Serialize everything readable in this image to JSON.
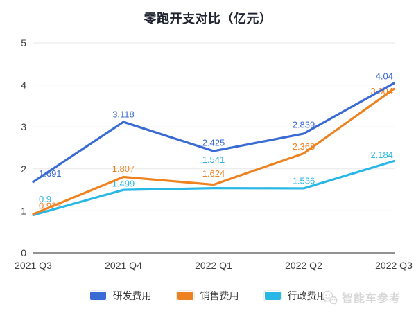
{
  "chart_data": {
    "type": "line",
    "title": "零跑开支对比（亿元）",
    "categories": [
      "2021 Q3",
      "2021 Q4",
      "2022 Q1",
      "2022 Q2",
      "2022 Q3"
    ],
    "series": [
      {
        "name": "研发费用",
        "color": "#3a6ad4",
        "values": [
          1.691,
          3.118,
          2.425,
          2.839,
          4.04
        ],
        "labels": [
          "1.691",
          "3.118",
          "2.425",
          "2.839",
          "4.04"
        ]
      },
      {
        "name": "销售费用",
        "color": "#ef8220",
        "values": [
          0.923,
          1.807,
          1.624,
          2.368,
          3.904
        ],
        "labels": [
          "0.923",
          "1.807",
          "1.624",
          "2.368",
          "3.904"
        ]
      },
      {
        "name": "行政费用",
        "color": "#29b7e5",
        "values": [
          0.9,
          1.499,
          1.541,
          1.536,
          2.184
        ],
        "labels": [
          "0.9",
          "1.499",
          "1.541",
          "1.536",
          "2.184"
        ]
      }
    ],
    "xlabel": "",
    "ylabel": "",
    "ylim": [
      0,
      5
    ],
    "yticks": [
      0,
      1,
      2,
      3,
      4,
      5
    ],
    "grid": true,
    "legend_position": "bottom"
  },
  "watermark": {
    "text": "智能车参考",
    "icon": "wechat-icon"
  },
  "colors": {
    "background": "#ffffff",
    "grid": "#e7e7e7",
    "axis": "#6e6e6e",
    "tick_text": "#3d3d3d",
    "title_text": "#1e2430",
    "watermark": "#d8d8d8"
  }
}
